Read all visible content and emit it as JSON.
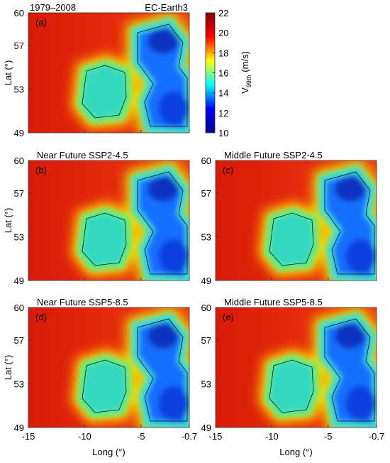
{
  "panels": [
    {
      "label": "(a)",
      "title": "1979–2008",
      "title_right": "EC-Earth3"
    },
    {
      "label": "(b)",
      "title": "Near Future SSP2-4.5"
    },
    {
      "label": "(c)",
      "title": "Middle Future SSP2-4.5"
    },
    {
      "label": "(d)",
      "title": "Near Future SSP5-8.5"
    },
    {
      "label": "(e)",
      "title": "Middle Future SSP5-8.5"
    }
  ],
  "axes": {
    "xlabel": "Long (°)",
    "ylabel": "Lat (°)",
    "xlim": [
      -15,
      -0.7
    ],
    "ylim": [
      49,
      60
    ],
    "xticks": [
      -15,
      -10,
      -5,
      -0.7
    ],
    "yticks": [
      49,
      53,
      57,
      60
    ]
  },
  "colorbar": {
    "label": "V",
    "label_sub": "99th",
    "label_unit": "(m/s)",
    "lim": [
      10,
      22
    ],
    "ticks": [
      10,
      12,
      14,
      16,
      18,
      20,
      22
    ],
    "colormap": [
      "#00008f",
      "#0000ff",
      "#00ffff",
      "#ffff00",
      "#ff0000",
      "#800000"
    ]
  }
}
